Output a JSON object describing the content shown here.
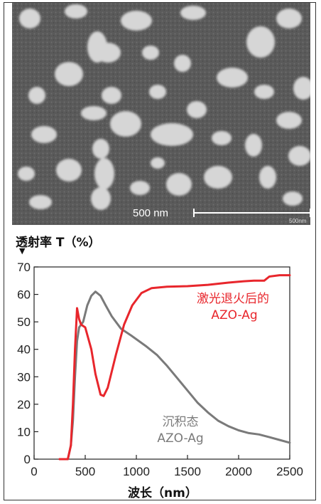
{
  "sem_image": {
    "scale_label": "500 nm",
    "instrument_mark": "500nm"
  },
  "chart_data": {
    "type": "line",
    "ylabel": "透射率 T（%）",
    "xlabel": "波长（nm）",
    "xlim": [
      0,
      2500
    ],
    "ylim": [
      0,
      70
    ],
    "xticks": [
      "0",
      "500",
      "1000",
      "1500",
      "2000",
      "2500"
    ],
    "yticks": [
      "0",
      "10",
      "20",
      "30",
      "40",
      "50",
      "60",
      "70"
    ],
    "grid": false,
    "series": [
      {
        "name": "激光退火后的 AZO-Ag",
        "color": "#e8262c",
        "label_lines": [
          "激光退火后的",
          "AZO-Ag"
        ],
        "points": [
          [
            250,
            0
          ],
          [
            330,
            0
          ],
          [
            360,
            5
          ],
          [
            380,
            20
          ],
          [
            400,
            40
          ],
          [
            420,
            55
          ],
          [
            440,
            51
          ],
          [
            460,
            49
          ],
          [
            500,
            48
          ],
          [
            560,
            40
          ],
          [
            600,
            31
          ],
          [
            650,
            23.5
          ],
          [
            680,
            23
          ],
          [
            720,
            26
          ],
          [
            800,
            38
          ],
          [
            880,
            49
          ],
          [
            960,
            56
          ],
          [
            1050,
            60.5
          ],
          [
            1150,
            62.3
          ],
          [
            1300,
            62.8
          ],
          [
            1500,
            63
          ],
          [
            1700,
            63.5
          ],
          [
            1900,
            64.3
          ],
          [
            2050,
            64.8
          ],
          [
            2150,
            65
          ],
          [
            2250,
            65
          ],
          [
            2300,
            66.5
          ],
          [
            2400,
            67
          ],
          [
            2500,
            67
          ]
        ]
      },
      {
        "name": "沉积态 AZO-Ag",
        "color": "#7a7a7a",
        "label_lines": [
          "沉积态",
          "AZO-Ag"
        ],
        "points": [
          [
            250,
            0
          ],
          [
            330,
            0
          ],
          [
            360,
            5
          ],
          [
            380,
            14
          ],
          [
            400,
            30
          ],
          [
            420,
            43
          ],
          [
            440,
            48
          ],
          [
            480,
            50
          ],
          [
            520,
            56
          ],
          [
            560,
            59.5
          ],
          [
            600,
            61
          ],
          [
            650,
            59.5
          ],
          [
            700,
            56
          ],
          [
            760,
            52
          ],
          [
            850,
            47.5
          ],
          [
            950,
            45
          ],
          [
            1100,
            41
          ],
          [
            1200,
            38
          ],
          [
            1300,
            34
          ],
          [
            1400,
            29.5
          ],
          [
            1500,
            25
          ],
          [
            1600,
            20.5
          ],
          [
            1700,
            17
          ],
          [
            1800,
            14
          ],
          [
            1900,
            12
          ],
          [
            2000,
            10.5
          ],
          [
            2100,
            9.5
          ],
          [
            2200,
            9
          ],
          [
            2300,
            8
          ],
          [
            2400,
            7
          ],
          [
            2500,
            6
          ]
        ]
      }
    ]
  }
}
